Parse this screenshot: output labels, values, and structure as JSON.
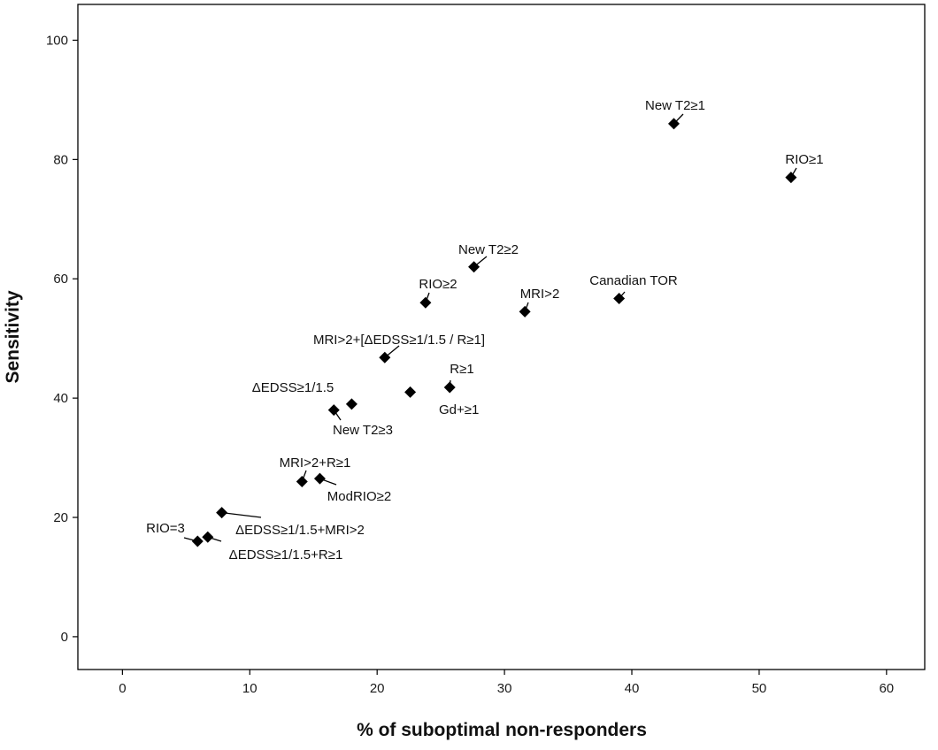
{
  "chart_data": {
    "type": "scatter",
    "title": "",
    "xlabel": "% of suboptimal non-responders",
    "ylabel": "Sensitivity",
    "xlim": [
      -3.5,
      63
    ],
    "ylim": [
      -5.5,
      106
    ],
    "xticks": [
      0,
      10,
      20,
      30,
      40,
      50,
      60
    ],
    "yticks": [
      0,
      20,
      40,
      60,
      80,
      100
    ],
    "grid": false,
    "legend": "none",
    "marker": "diamond",
    "marker_color": "#000000",
    "points": [
      {
        "label": "New T2≥1",
        "x": 43.3,
        "y": 86
      },
      {
        "label": "RIO≥1",
        "x": 52.5,
        "y": 77
      },
      {
        "label": "New T2≥2",
        "x": 27.6,
        "y": 62
      },
      {
        "label": "RIO≥2",
        "x": 23.8,
        "y": 56
      },
      {
        "label": "MRI>2",
        "x": 31.6,
        "y": 54.5
      },
      {
        "label": "Canadian TOR",
        "x": 39,
        "y": 56.7
      },
      {
        "label": "MRI>2+[ΔEDSS≥1/1.5 / R≥1]",
        "x": 20.6,
        "y": 46.8
      },
      {
        "label": "R≥1",
        "x": 25.7,
        "y": 41.8
      },
      {
        "label": "Gd+≥1",
        "x": 22.6,
        "y": 41
      },
      {
        "label": "ΔEDSS≥1/1.5",
        "x": 18,
        "y": 39
      },
      {
        "label": "New T2≥3",
        "x": 16.6,
        "y": 38
      },
      {
        "label": "MRI>2+R≥1",
        "x": 14.1,
        "y": 26
      },
      {
        "label": "ModRIO≥2",
        "x": 15.5,
        "y": 26.5
      },
      {
        "label": "ΔEDSS≥1/1.5+MRI>2",
        "x": 7.8,
        "y": 20.8
      },
      {
        "label": "RIO=3",
        "x": 5.9,
        "y": 16
      },
      {
        "label": "ΔEDSS≥1/1.5+R≥1",
        "x": 6.7,
        "y": 16.7
      }
    ]
  }
}
